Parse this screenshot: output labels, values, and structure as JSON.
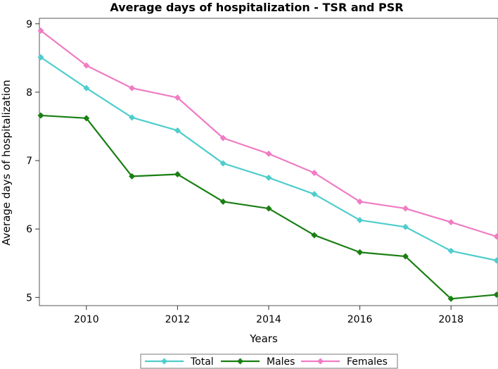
{
  "chart_data": {
    "type": "line",
    "title": "Average days of hospitalization - TSR and PSR",
    "xlabel": "Years",
    "ylabel": "Average days of hospitalization",
    "x": [
      2009,
      2010,
      2011,
      2012,
      2013,
      2014,
      2015,
      2016,
      2017,
      2018,
      2019
    ],
    "xlim": [
      2009,
      2019
    ],
    "ylim": [
      4.88,
      9.08
    ],
    "xticks": [
      "2010",
      "2012",
      "2014",
      "2016",
      "2018"
    ],
    "yticks": [
      "5",
      "6",
      "7",
      "8",
      "9"
    ],
    "grid": false,
    "legend_position": "bottom",
    "series": [
      {
        "name": "Total",
        "color": "#4ecdcc",
        "marker": "diamond",
        "values": [
          8.51,
          8.06,
          7.63,
          7.44,
          6.96,
          6.75,
          6.51,
          6.13,
          6.03,
          5.68,
          5.54
        ]
      },
      {
        "name": "Males",
        "color": "#1a7f13",
        "marker": "diamond",
        "values": [
          7.66,
          7.62,
          6.77,
          6.8,
          6.4,
          6.3,
          5.91,
          5.66,
          5.6,
          4.98,
          5.04
        ]
      },
      {
        "name": "Females",
        "color": "#f07cc4",
        "marker": "diamond",
        "values": [
          8.9,
          8.39,
          8.06,
          7.92,
          7.33,
          7.1,
          6.82,
          6.4,
          6.3,
          6.1,
          5.89
        ]
      }
    ]
  }
}
